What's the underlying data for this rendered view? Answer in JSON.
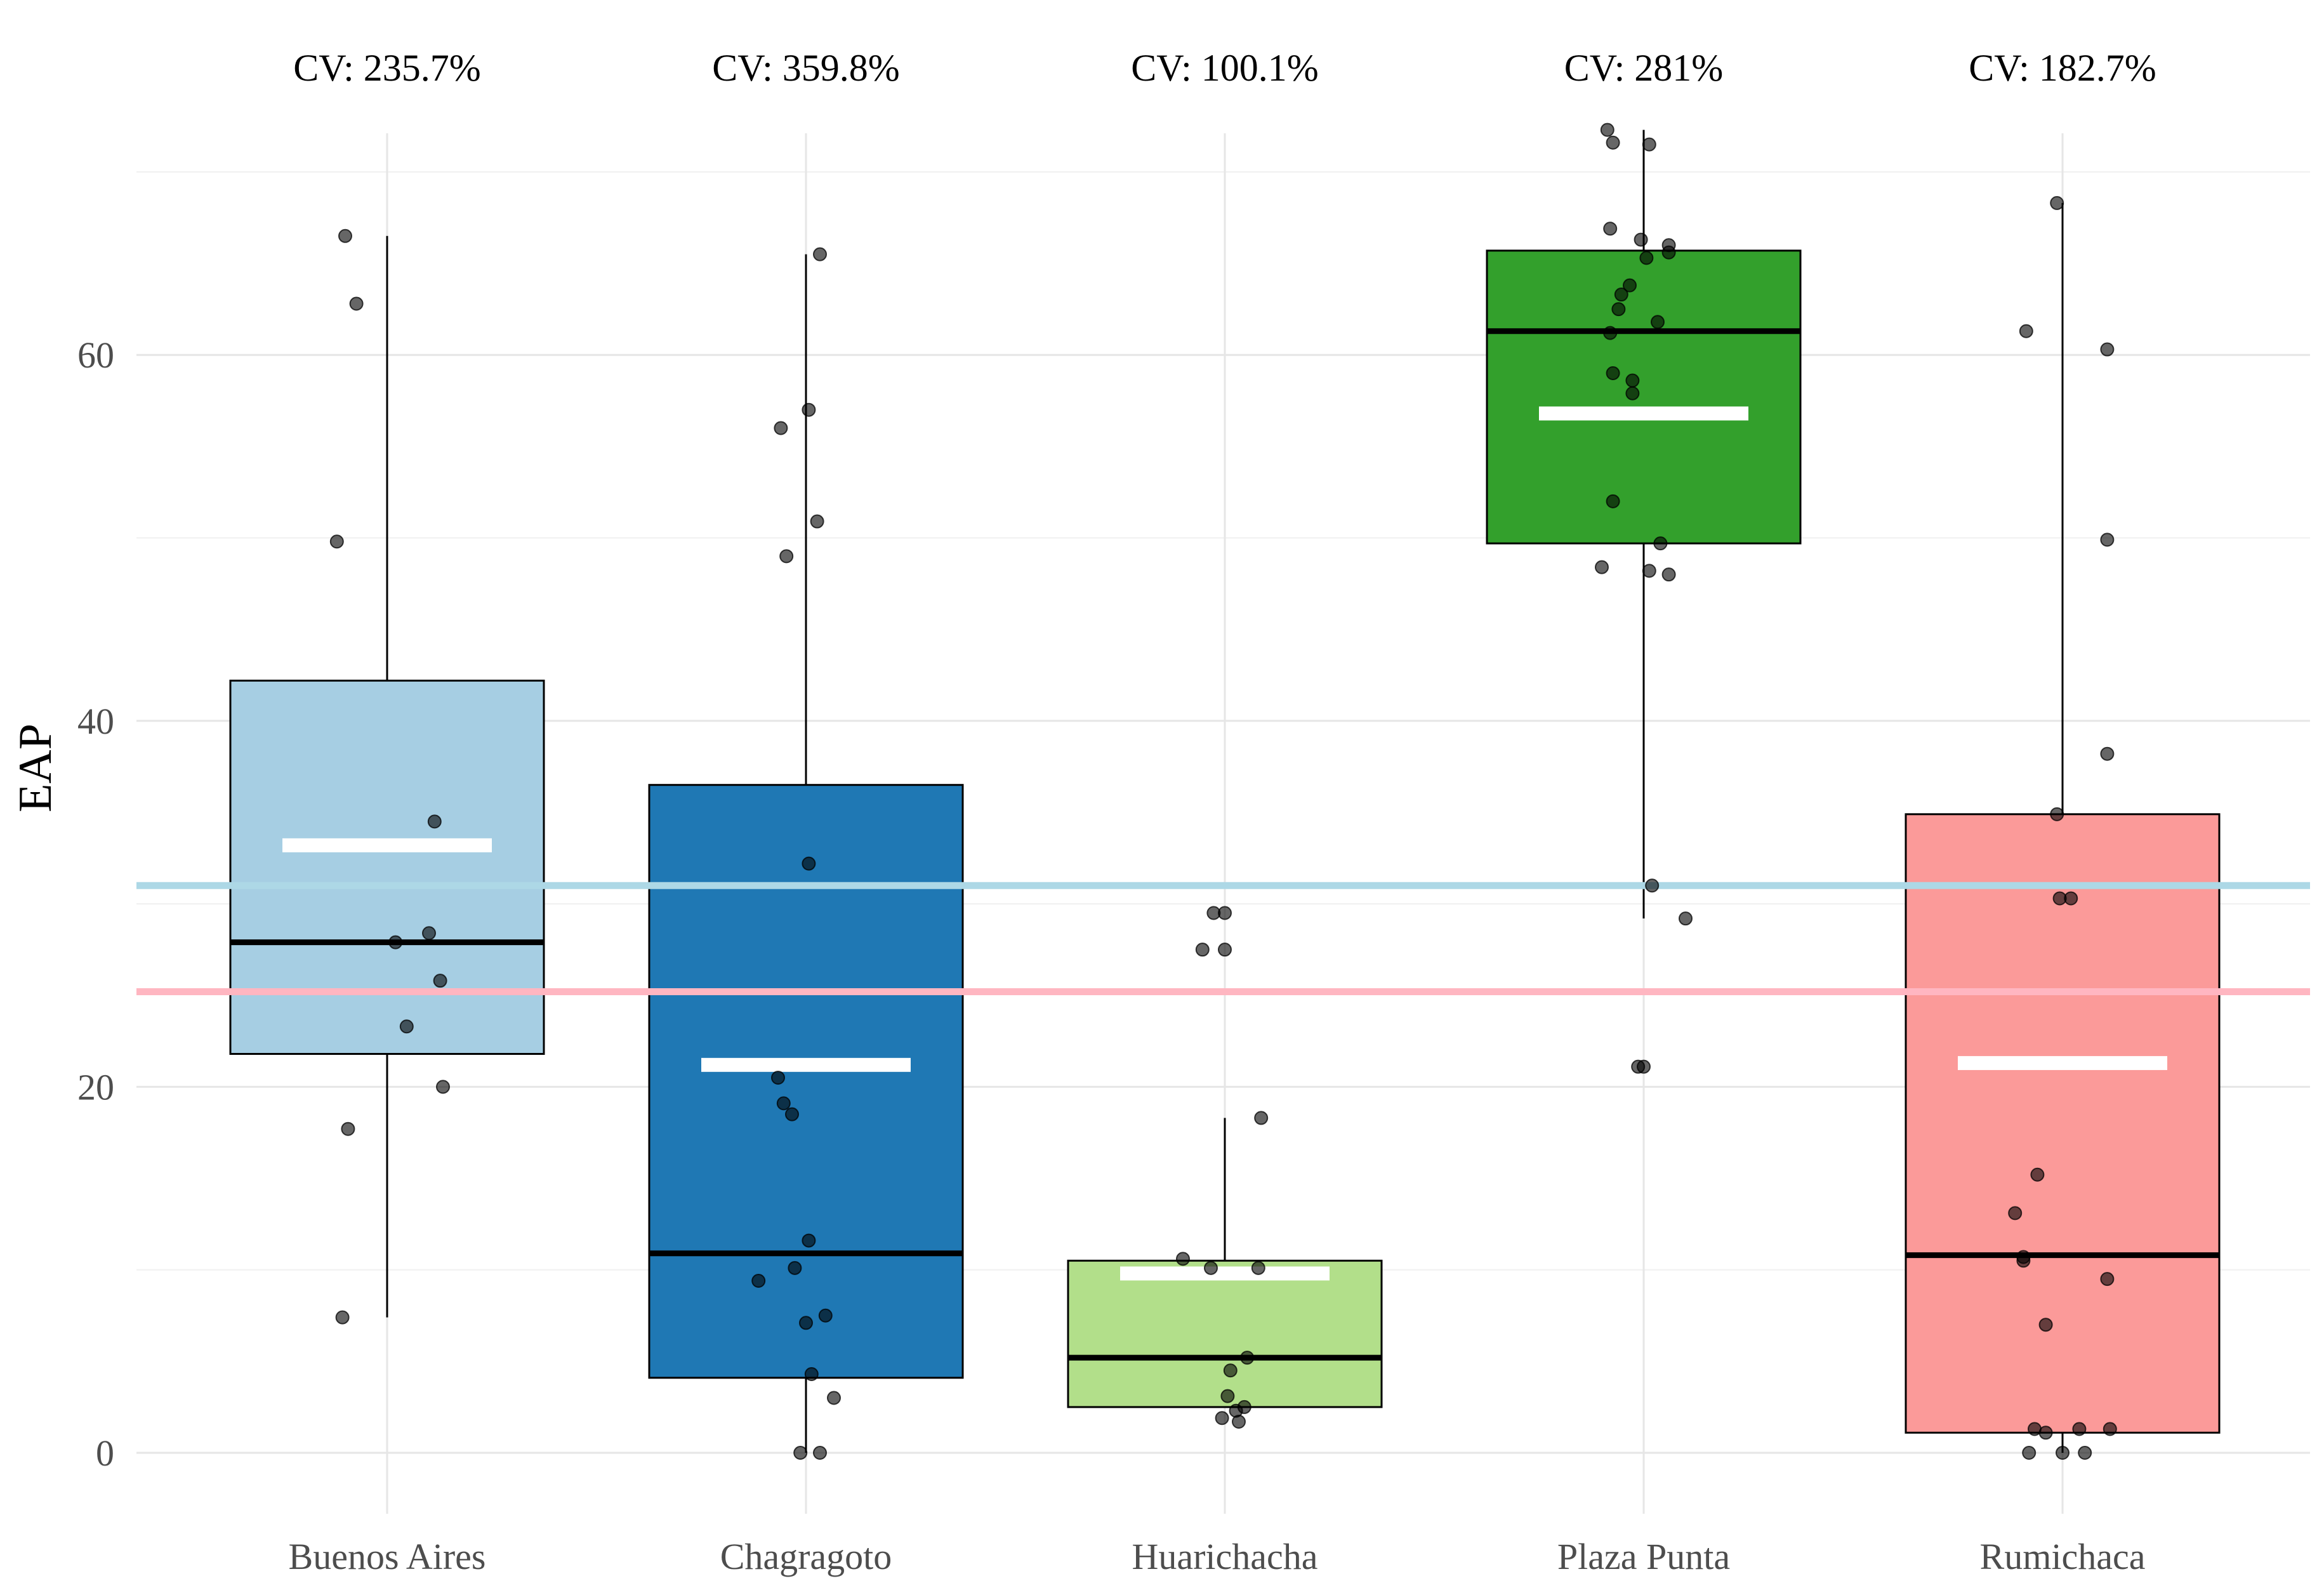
{
  "chart_data": {
    "type": "boxplot",
    "title": "",
    "xlabel": "",
    "ylabel": "EAP",
    "ylim": [
      -3.5,
      74
    ],
    "yticks": [
      0,
      20,
      40,
      60
    ],
    "grid": true,
    "categories": [
      "Buenos Aires",
      "Chagragoto",
      "Huarichacha",
      "Plaza Punta",
      "Rumichaca"
    ],
    "groups": [
      {
        "name": "Buenos Aires",
        "cv_label": "CV: 235.7%",
        "color": "#a6cee3",
        "stats": {
          "min": 7.4,
          "q1": 21.8,
          "median": 27.9,
          "q3": 42.2,
          "max": 66.5,
          "mean": 33.2
        },
        "points": [
          [
            -0.15,
            66.5
          ],
          [
            -0.11,
            62.8
          ],
          [
            -0.18,
            49.8
          ],
          [
            0.17,
            34.5
          ],
          [
            0.15,
            28.4
          ],
          [
            0.03,
            27.9
          ],
          [
            0.19,
            25.8
          ],
          [
            0.07,
            23.3
          ],
          [
            0.2,
            20.0
          ],
          [
            -0.14,
            17.7
          ],
          [
            -0.16,
            7.4
          ]
        ]
      },
      {
        "name": "Chagragoto",
        "cv_label": "CV: 359.8%",
        "color": "#1f78b4",
        "stats": {
          "min": 0,
          "q1": 4.1,
          "median": 10.9,
          "q3": 36.5,
          "max": 65.5,
          "mean": 21.2
        },
        "points": [
          [
            0.05,
            65.5
          ],
          [
            0.01,
            57.0
          ],
          [
            -0.09,
            56.0
          ],
          [
            0.04,
            50.9
          ],
          [
            -0.07,
            49.0
          ],
          [
            0.01,
            32.2
          ],
          [
            -0.1,
            20.5
          ],
          [
            -0.08,
            19.1
          ],
          [
            -0.05,
            18.5
          ],
          [
            0.01,
            11.6
          ],
          [
            -0.04,
            10.1
          ],
          [
            -0.17,
            9.4
          ],
          [
            0.07,
            7.5
          ],
          [
            0.0,
            7.1
          ],
          [
            0.02,
            4.3
          ],
          [
            0.1,
            3.0
          ],
          [
            -0.02,
            0.0
          ],
          [
            0.05,
            0.0
          ]
        ]
      },
      {
        "name": "Huarichacha",
        "cv_label": "CV: 100.1%",
        "color": "#b2df8a",
        "stats": {
          "min": 2.5,
          "q1": 2.5,
          "median": 5.2,
          "q3": 10.5,
          "max": 18.3,
          "mean": 9.8
        },
        "points": [
          [
            -0.04,
            29.5
          ],
          [
            0.0,
            29.5
          ],
          [
            -0.08,
            27.5
          ],
          [
            0.0,
            27.5
          ],
          [
            0.13,
            18.3
          ],
          [
            -0.15,
            10.6
          ],
          [
            -0.05,
            10.1
          ],
          [
            0.12,
            10.1
          ],
          [
            0.08,
            5.2
          ],
          [
            0.02,
            4.5
          ],
          [
            0.01,
            3.1
          ],
          [
            0.04,
            2.3
          ],
          [
            0.07,
            2.5
          ],
          [
            -0.01,
            1.9
          ],
          [
            0.05,
            1.7
          ]
        ]
      },
      {
        "name": "Plaza Punta",
        "cv_label": "CV: 281%",
        "color": "#33a02c",
        "stats": {
          "min": 29.2,
          "q1": 49.7,
          "median": 61.3,
          "q3": 65.7,
          "max": 72.3,
          "mean": 56.8
        },
        "points": [
          [
            -0.13,
            72.3
          ],
          [
            -0.11,
            71.6
          ],
          [
            0.02,
            71.5
          ],
          [
            -0.12,
            66.9
          ],
          [
            -0.01,
            66.3
          ],
          [
            0.09,
            66.0
          ],
          [
            0.09,
            65.6
          ],
          [
            0.01,
            65.3
          ],
          [
            -0.08,
            63.3
          ],
          [
            -0.05,
            63.8
          ],
          [
            -0.09,
            62.5
          ],
          [
            0.05,
            61.8
          ],
          [
            -0.12,
            61.2
          ],
          [
            -0.11,
            59.0
          ],
          [
            -0.04,
            58.6
          ],
          [
            -0.04,
            57.9
          ],
          [
            -0.11,
            52.0
          ],
          [
            0.06,
            49.7
          ],
          [
            -0.15,
            48.4
          ],
          [
            0.02,
            48.2
          ],
          [
            0.09,
            48.0
          ],
          [
            0.03,
            31.0
          ],
          [
            0.15,
            29.2
          ],
          [
            -0.02,
            21.1
          ],
          [
            0.0,
            21.1
          ]
        ]
      },
      {
        "name": "Rumichaca",
        "cv_label": "CV: 182.7%",
        "color": "#fb9a99",
        "stats": {
          "min": 0,
          "q1": 1.1,
          "median": 10.8,
          "q3": 34.9,
          "max": 68.3,
          "mean": 21.3
        },
        "points": [
          [
            -0.02,
            68.3
          ],
          [
            -0.13,
            61.3
          ],
          [
            0.16,
            60.3
          ],
          [
            0.16,
            49.9
          ],
          [
            0.16,
            38.2
          ],
          [
            -0.02,
            34.9
          ],
          [
            -0.01,
            30.3
          ],
          [
            0.03,
            30.3
          ],
          [
            -0.09,
            15.2
          ],
          [
            -0.17,
            13.1
          ],
          [
            -0.14,
            10.7
          ],
          [
            -0.14,
            10.5
          ],
          [
            0.16,
            9.5
          ],
          [
            -0.06,
            7.0
          ],
          [
            -0.1,
            1.3
          ],
          [
            -0.06,
            1.1
          ],
          [
            0.06,
            1.3
          ],
          [
            0.17,
            1.3
          ],
          [
            -0.12,
            0.0
          ],
          [
            0.0,
            0.0
          ],
          [
            0.08,
            0.0
          ]
        ]
      }
    ],
    "reference_lines": [
      {
        "value": 31.0,
        "color": "#add8e6"
      },
      {
        "value": 25.2,
        "color": "#ffb6c1"
      }
    ]
  }
}
